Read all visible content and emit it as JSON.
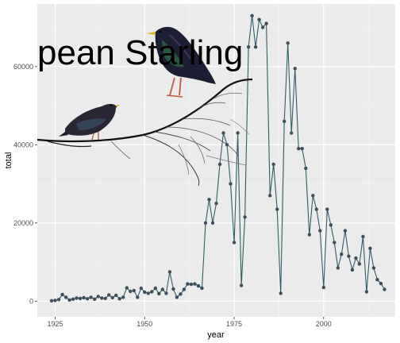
{
  "chart_data": {
    "type": "line",
    "title": "pean Starling",
    "xlabel": "year",
    "ylabel": "total",
    "xlim": [
      1920,
      2020
    ],
    "ylim": [
      -4000,
      76000
    ],
    "x_ticks": [
      1925,
      1950,
      1975,
      2000
    ],
    "x_tick_labels": [
      "1925",
      "1950",
      "1975",
      "2000"
    ],
    "y_ticks": [
      0,
      20000,
      40000,
      60000
    ],
    "y_tick_labels": [
      "0",
      "20000",
      "40000",
      "60000"
    ],
    "grid": true,
    "panel_background": "#ebebeb",
    "series_color": "#2f5d66",
    "point_color": "#3d4e5a",
    "series": [
      {
        "x": [
          1924,
          1925,
          1926,
          1927,
          1928,
          1929,
          1930,
          1931,
          1932,
          1933,
          1934,
          1935,
          1936,
          1937,
          1938,
          1939,
          1940,
          1941,
          1942,
          1943,
          1944,
          1945,
          1946,
          1947,
          1948,
          1949,
          1950,
          1951,
          1952,
          1953,
          1954,
          1955,
          1956,
          1957,
          1958,
          1959,
          1960,
          1961,
          1962,
          1963,
          1964,
          1965,
          1966,
          1967,
          1968,
          1969,
          1970,
          1971,
          1972,
          1973,
          1974,
          1975,
          1976,
          1977,
          1978,
          1979,
          1980,
          1981,
          1982,
          1983,
          1984,
          1985,
          1986,
          1987,
          1988,
          1989,
          1990,
          1991,
          1992,
          1993,
          1994,
          1995,
          1996,
          1997,
          1998,
          1999,
          2000,
          2001,
          2002,
          2003,
          2004,
          2005,
          2006,
          2007,
          2008,
          2009,
          2010,
          2011,
          2012,
          2013,
          2014,
          2015,
          2016,
          2017
        ],
        "y": [
          100,
          200,
          400,
          1700,
          1000,
          300,
          500,
          800,
          700,
          900,
          600,
          1000,
          500,
          1200,
          800,
          700,
          1600,
          900,
          1500,
          600,
          1000,
          3400,
          2500,
          2700,
          1000,
          3300,
          2300,
          2000,
          2400,
          3300,
          1900,
          3000,
          2000,
          7500,
          3100,
          1000,
          1800,
          3000,
          4400,
          4300,
          4400,
          3900,
          3300,
          20000,
          26000,
          20000,
          25000,
          35000,
          43000,
          40000,
          30000,
          15000,
          43000,
          4000,
          21500,
          65000,
          73000,
          65000,
          72000,
          70000,
          71000,
          27000,
          35000,
          23500,
          2000,
          46000,
          66000,
          43000,
          59500,
          39000,
          39000,
          34000,
          17000,
          27000,
          23500,
          18000,
          3500,
          23500,
          19500,
          15000,
          8500,
          12000,
          18000,
          11500,
          8000,
          11000,
          9500,
          16500,
          2400,
          13500,
          8500,
          5500,
          4500,
          3000
        ]
      }
    ]
  },
  "illustration": {
    "subject": "two european starlings perched on a bare branch",
    "icon": "starling-birds-illustration"
  }
}
